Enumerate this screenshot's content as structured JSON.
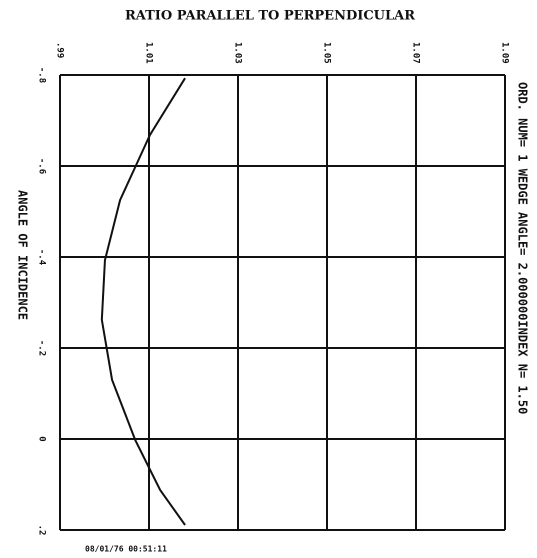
{
  "chart_data": {
    "type": "line",
    "title": "RATIO PARALLEL TO PERPENDICULAR",
    "ylabel": "ANGLE OF INCIDENCE",
    "annotation": "ORD. NUM= 1 WEDGE ANGLE= 2.000000INDEX N= 1.50",
    "timestamp": "08/01/76 00:51:11",
    "y_inverted": true,
    "grid": true,
    "xlim": [
      0.99,
      1.09
    ],
    "xticks": [
      {
        "value": 0.99,
        "label": ".99"
      },
      1.01,
      1.03,
      1.05,
      1.07,
      1.09
    ],
    "ylim": [
      -0.8,
      0.2
    ],
    "yticks": [
      {
        "value": -0.8,
        "label": "-.8"
      },
      {
        "value": -0.6,
        "label": "-.6"
      },
      {
        "value": -0.4,
        "label": "-.4"
      },
      {
        "value": -0.2,
        "label": "-.2"
      },
      0,
      {
        "value": 0.2,
        "label": ".2"
      }
    ],
    "series": [
      {
        "color": "#111111",
        "x": [
          1.0181,
          1.0102,
          1.0035,
          1.0001,
          0.9994,
          1.0017,
          1.0069,
          1.0125,
          1.0181
        ],
        "values": [
          -0.793,
          -0.668,
          -0.525,
          -0.393,
          -0.262,
          -0.13,
          0.002,
          0.112,
          0.189
        ]
      }
    ]
  }
}
